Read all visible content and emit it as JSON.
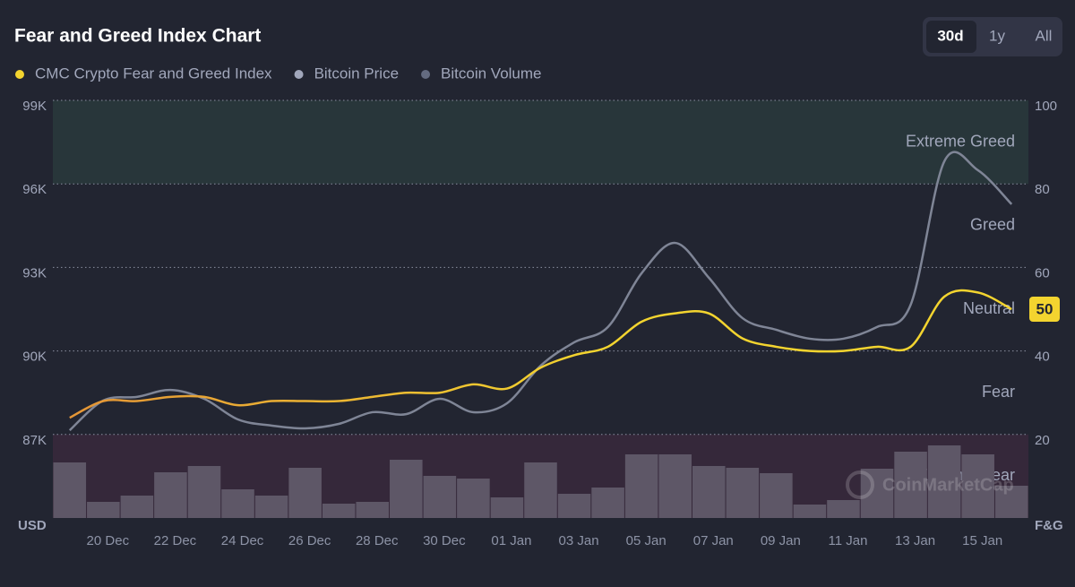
{
  "chart_data": {
    "type": "line",
    "title": "Fear and Greed Index Chart",
    "ranges": [
      "30d",
      "1y",
      "All"
    ],
    "active_range": "30d",
    "left_axis_label": "USD",
    "right_axis_label": "F&G",
    "watermark": "CoinMarketCap",
    "categories": [
      null,
      "20 Dec",
      null,
      "22 Dec",
      null,
      "24 Dec",
      null,
      "26 Dec",
      null,
      "28 Dec",
      null,
      "30 Dec",
      null,
      "01 Jan",
      null,
      "03 Jan",
      null,
      "05 Jan",
      null,
      "07 Jan",
      null,
      "09 Jan",
      null,
      "11 Jan",
      null,
      "13 Jan",
      null,
      "15 Jan",
      null
    ],
    "ylim": [
      84000,
      99000
    ],
    "yticks": [
      {
        "value": 87000,
        "label": "87K"
      },
      {
        "value": 90000,
        "label": "90K"
      },
      {
        "value": 93000,
        "label": "93K"
      },
      {
        "value": 96000,
        "label": "96K"
      },
      {
        "value": 99000,
        "label": "99K"
      }
    ],
    "y2lim": [
      0,
      100
    ],
    "y2ticks": [
      20,
      40,
      60,
      80,
      100
    ],
    "grid": true,
    "zones": [
      {
        "label": "Extreme Fear",
        "from": 0,
        "to": 20,
        "color": "#35283a"
      },
      {
        "label": "Fear",
        "from": 20,
        "to": 40,
        "color": null
      },
      {
        "label": "Neutral",
        "from": 40,
        "to": 60,
        "color": null
      },
      {
        "label": "Greed",
        "from": 60,
        "to": 80,
        "color": null
      },
      {
        "label": "Extreme Greed",
        "from": 80,
        "to": 100,
        "color": "#28363a"
      }
    ],
    "series": [
      {
        "name": "CMC Crypto Fear and Greed Index",
        "color": "#f3d42f",
        "gradient_start": "#e49536",
        "axis": "y2",
        "values": [
          24,
          28,
          28,
          29,
          29,
          27,
          28,
          28,
          28,
          29,
          30,
          30,
          32,
          31,
          36,
          39,
          41,
          47,
          49,
          49,
          43,
          41,
          40,
          40,
          41,
          41,
          53,
          54,
          50
        ]
      },
      {
        "name": "Bitcoin Price",
        "color": "#7f8596",
        "legend_color": "#a1a7bb",
        "axis": "y",
        "values": [
          87150,
          88220,
          88350,
          88600,
          88280,
          87540,
          87320,
          87220,
          87380,
          87800,
          87730,
          88280,
          87800,
          88120,
          89470,
          90310,
          90860,
          92790,
          93880,
          92630,
          91180,
          90760,
          90440,
          90440,
          90860,
          91660,
          96810,
          96490,
          95270
        ]
      },
      {
        "name": "Bitcoin Volume",
        "color": "#5e5767",
        "legend_color": "#646b80",
        "type": "bar",
        "values": [
          62,
          18,
          25,
          51,
          58,
          32,
          25,
          56,
          16,
          18,
          65,
          47,
          44,
          23,
          62,
          27,
          34,
          71,
          71,
          58,
          56,
          50,
          15,
          20,
          55,
          74,
          81,
          71,
          36
        ]
      }
    ]
  }
}
